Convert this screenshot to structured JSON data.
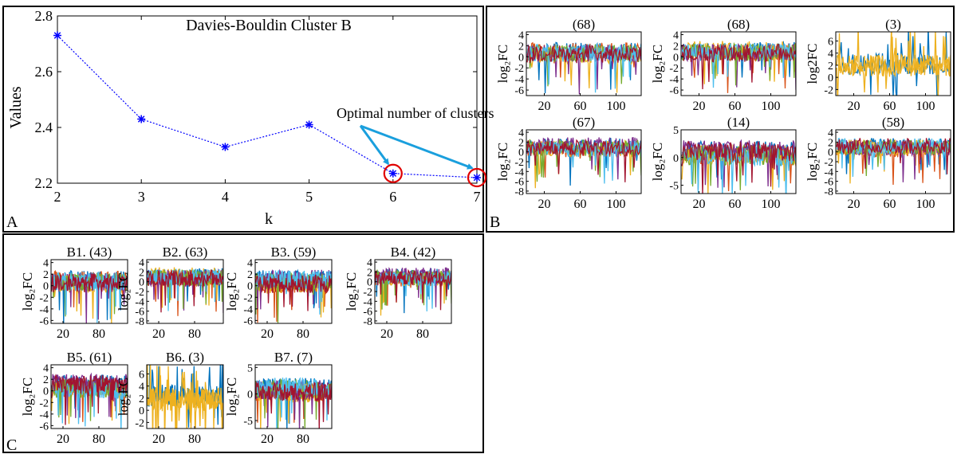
{
  "panel_labels": {
    "a": "A",
    "b": "B",
    "c": "C"
  },
  "chart_data": [
    {
      "id": "A",
      "type": "line",
      "title": "Davies-Bouldin Cluster B",
      "xlabel": "k",
      "ylabel": "Values",
      "x": [
        2,
        3,
        4,
        5,
        6,
        7
      ],
      "values": [
        2.73,
        2.43,
        2.33,
        2.41,
        2.235,
        2.22
      ],
      "xlim": [
        2,
        7
      ],
      "ylim": [
        2.2,
        2.8
      ],
      "xticks": [
        "2",
        "3",
        "4",
        "5",
        "6",
        "7"
      ],
      "yticks": [
        "2.2",
        "2.4",
        "2.6",
        "2.8"
      ],
      "highlighted_k": [
        6,
        7
      ],
      "annotation": "Optimal number of clusters",
      "line_color": "#0000ff",
      "marker_color": "#0000ff",
      "highlight_color": "#e00000",
      "arrow_color": "#1a9fdd",
      "grid": false
    },
    {
      "id": "B",
      "type": "line",
      "ylabel_default": "log₂FC",
      "subplots": [
        {
          "title": "(68)",
          "ylabel": "log₂FC",
          "yrange": [
            -7,
            4.5
          ],
          "yticks": [
            4,
            2,
            0,
            -2,
            -4,
            -6
          ],
          "xticks": [
            20,
            60,
            100
          ],
          "spread": 3.2
        },
        {
          "title": "(68)",
          "ylabel": "log₂FC",
          "yrange": [
            -7,
            4.5
          ],
          "yticks": [
            4,
            2,
            0,
            -2,
            -4,
            -6
          ],
          "xticks": [
            20,
            60,
            100
          ],
          "spread": 3.2
        },
        {
          "title": "(3)",
          "ylabel": "log2FC",
          "yrange": [
            -3,
            7.5
          ],
          "yticks": [
            6,
            4,
            2,
            0,
            -2
          ],
          "xticks": [
            20,
            60,
            100
          ],
          "spread": 3.6,
          "few": true
        },
        {
          "title": "(67)",
          "ylabel": "log₂FC",
          "yrange": [
            -8.5,
            4.5
          ],
          "yticks": [
            4,
            2,
            0,
            -2,
            -4,
            -6,
            -8
          ],
          "xticks": [
            20,
            60,
            100
          ],
          "spread": 3.4
        },
        {
          "title": "(14)",
          "ylabel": "log₂FC",
          "yrange": [
            -6.5,
            5
          ],
          "yticks": [
            5,
            0,
            -5
          ],
          "xticks": [
            20,
            60,
            100
          ],
          "spread": 3.6
        },
        {
          "title": "(58)",
          "ylabel": "log₂FC",
          "yrange": [
            -8.5,
            4.5
          ],
          "yticks": [
            4,
            2,
            0,
            -2,
            -4,
            -6,
            -8
          ],
          "xticks": [
            20,
            60,
            100
          ],
          "spread": 3.2
        }
      ]
    },
    {
      "id": "C",
      "type": "line",
      "subplots": [
        {
          "title": "B1. (43)",
          "ylabel": "log₂FC",
          "yrange": [
            -6.5,
            4.5
          ],
          "yticks": [
            4,
            2,
            0,
            -2,
            -4,
            -6
          ],
          "xticks": [
            20,
            80
          ],
          "spread": 3.2
        },
        {
          "title": "B2. (63)",
          "ylabel": "log₂FC",
          "yrange": [
            -8.5,
            4.5
          ],
          "yticks": [
            4,
            2,
            0,
            -2,
            -4,
            -6,
            -8
          ],
          "xticks": [
            20,
            80
          ],
          "spread": 3.4
        },
        {
          "title": "B3. (59)",
          "ylabel": "log₂FC",
          "yrange": [
            -6.5,
            4.5
          ],
          "yticks": [
            4,
            2,
            0,
            -2,
            -4,
            -6
          ],
          "xticks": [
            20,
            80
          ],
          "spread": 3.2
        },
        {
          "title": "B4. (42)",
          "ylabel": "log₂FC",
          "yrange": [
            -8.5,
            4.5
          ],
          "yticks": [
            4,
            2,
            0,
            -2,
            -4,
            -6,
            -8
          ],
          "xticks": [
            20,
            80
          ],
          "spread": 3.2
        },
        {
          "title": "B5. (61)",
          "ylabel": "log₂FC",
          "yrange": [
            -6.5,
            4.5
          ],
          "yticks": [
            4,
            2,
            0,
            -2,
            -4,
            -6
          ],
          "xticks": [
            20,
            80
          ],
          "spread": 3.2
        },
        {
          "title": "B6. (3)",
          "ylabel": "log₂FC",
          "yrange": [
            -3,
            7.5
          ],
          "yticks": [
            6,
            4,
            2,
            0,
            -2
          ],
          "xticks": [
            20,
            80
          ],
          "spread": 3.6,
          "few": true
        },
        {
          "title": "B7. (7)",
          "ylabel": "log₂FC",
          "yrange": [
            -6.5,
            5.5
          ],
          "yticks": [
            5,
            0,
            -5
          ],
          "xticks": [
            20,
            80
          ],
          "spread": 3.6
        }
      ]
    }
  ],
  "series_palette": [
    "#0072bd",
    "#d95319",
    "#edb120",
    "#7e2f8e",
    "#77ac30",
    "#4dbeee",
    "#a2142f"
  ],
  "xmax": 128
}
